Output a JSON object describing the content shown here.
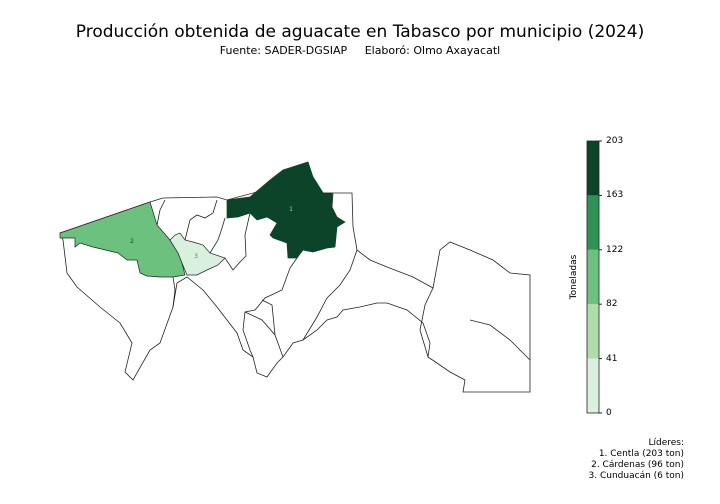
{
  "title": "Producción obtenida de aguacate en Tabasco por municipio (2024)",
  "subtitle": {
    "source": "Fuente: SADER-DGSIAP",
    "author": "Elaboró: Olmo Axayacatl"
  },
  "colorbar": {
    "label": "Toneladas",
    "ticks": [
      "0",
      "41",
      "82",
      "122",
      "163",
      "203"
    ],
    "colors": [
      "#d9f0df",
      "#aedcab",
      "#6cc17f",
      "#2f9355",
      "#0b4429"
    ]
  },
  "map": {
    "regions": [
      {
        "rank": "1",
        "name": "Centla",
        "value": 203,
        "color": "#0b4429"
      },
      {
        "rank": "2",
        "name": "Cárdenas",
        "value": 96,
        "color": "#6cc17f"
      },
      {
        "rank": "3",
        "name": "Cunduacán",
        "value": 6,
        "color": "#d9f0df"
      }
    ]
  },
  "leaders": {
    "heading": "Líderes:",
    "items": [
      "1. Centla (203 ton)",
      "2. Cárdenas (96 ton)",
      "3. Cunduacán (6 ton)"
    ]
  }
}
